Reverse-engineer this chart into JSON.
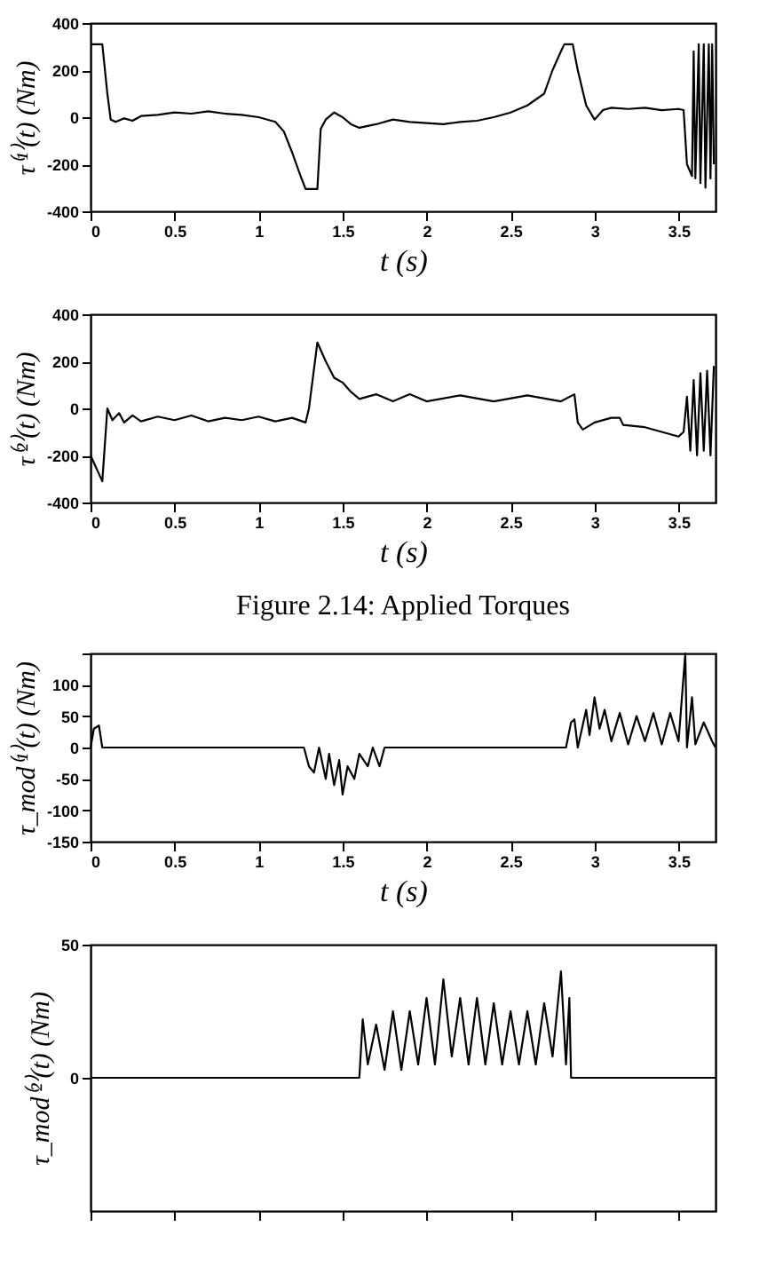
{
  "chart_data": [
    {
      "type": "line",
      "xlabel": "t (s)",
      "ylabel": "τ⁽¹⁾(t) (Nm)",
      "xlim": [
        0,
        3.72
      ],
      "xticks": [
        0,
        0.5,
        1,
        1.5,
        2,
        2.5,
        3,
        3.5
      ],
      "ylim": [
        -400,
        400
      ],
      "yticks": [
        -400,
        -200,
        0,
        200,
        400
      ],
      "series": [
        {
          "color": "#000000",
          "x": [
            0,
            0.07,
            0.1,
            0.12,
            0.15,
            0.2,
            0.25,
            0.3,
            0.4,
            0.5,
            0.6,
            0.7,
            0.8,
            0.9,
            1.0,
            1.1,
            1.15,
            1.2,
            1.25,
            1.28,
            1.35,
            1.37,
            1.4,
            1.45,
            1.5,
            1.55,
            1.6,
            1.7,
            1.8,
            1.9,
            2.0,
            2.1,
            2.2,
            2.3,
            2.4,
            2.5,
            2.6,
            2.7,
            2.75,
            2.8,
            2.82,
            2.87,
            2.9,
            2.95,
            3.0,
            3.05,
            3.1,
            3.2,
            3.3,
            3.4,
            3.5,
            3.53,
            3.55,
            3.58,
            3.59,
            3.6,
            3.62,
            3.63,
            3.65,
            3.66,
            3.68,
            3.69,
            3.7,
            3.71
          ],
          "values": [
            310,
            310,
            100,
            -10,
            -20,
            -5,
            -15,
            5,
            10,
            20,
            15,
            25,
            15,
            10,
            0,
            -20,
            -60,
            -150,
            -250,
            -305,
            -305,
            -50,
            -10,
            20,
            0,
            -30,
            -45,
            -30,
            -10,
            -20,
            -25,
            -30,
            -20,
            -15,
            0,
            20,
            50,
            100,
            200,
            280,
            310,
            310,
            200,
            50,
            -10,
            30,
            40,
            35,
            40,
            30,
            35,
            30,
            -200,
            -250,
            280,
            -260,
            310,
            -280,
            310,
            -300,
            310,
            -260,
            310,
            -200
          ]
        }
      ]
    },
    {
      "type": "line",
      "xlabel": "t (s)",
      "ylabel": "τ⁽²⁾(t) (Nm)",
      "xlim": [
        0,
        3.72
      ],
      "xticks": [
        0,
        0.5,
        1,
        1.5,
        2,
        2.5,
        3,
        3.5
      ],
      "ylim": [
        -400,
        400
      ],
      "yticks": [
        -400,
        -200,
        0,
        200,
        400
      ],
      "annotations": [
        "Figure 2.14:  Applied Torques"
      ],
      "series": [
        {
          "color": "#000000",
          "x": [
            0,
            0.07,
            0.1,
            0.13,
            0.17,
            0.2,
            0.25,
            0.3,
            0.4,
            0.5,
            0.6,
            0.7,
            0.8,
            0.9,
            1.0,
            1.1,
            1.2,
            1.28,
            1.3,
            1.35,
            1.4,
            1.45,
            1.5,
            1.55,
            1.6,
            1.7,
            1.8,
            1.9,
            2.0,
            2.2,
            2.4,
            2.6,
            2.8,
            2.88,
            2.9,
            2.93,
            3.0,
            3.1,
            3.15,
            3.17,
            3.3,
            3.4,
            3.5,
            3.53,
            3.55,
            3.57,
            3.59,
            3.61,
            3.63,
            3.65,
            3.67,
            3.69,
            3.71
          ],
          "values": [
            -200,
            -310,
            0,
            -50,
            -20,
            -60,
            -30,
            -55,
            -35,
            -50,
            -30,
            -55,
            -40,
            -50,
            -35,
            -55,
            -40,
            -60,
            0,
            280,
            200,
            130,
            110,
            70,
            40,
            60,
            30,
            60,
            30,
            55,
            30,
            55,
            30,
            60,
            -60,
            -90,
            -60,
            -40,
            -40,
            -70,
            -80,
            -100,
            -120,
            -100,
            50,
            -180,
            120,
            -200,
            150,
            -180,
            160,
            -200,
            180
          ]
        }
      ]
    },
    {
      "type": "line",
      "xlabel": "t (s)",
      "ylabel": "τ_mod⁽¹⁾(t) (Nm)",
      "xlim": [
        0,
        3.72
      ],
      "xticks": [
        0,
        0.5,
        1,
        1.5,
        2,
        2.5,
        3,
        3.5
      ],
      "ylim": [
        -150,
        150
      ],
      "yticks": [
        -150,
        -100,
        -50,
        0,
        50,
        100,
        {
          "value": 150,
          "label": null
        }
      ],
      "series": [
        {
          "color": "#000000",
          "x": [
            0,
            0.02,
            0.05,
            0.07,
            1.27,
            1.3,
            1.33,
            1.36,
            1.4,
            1.42,
            1.45,
            1.48,
            1.5,
            1.53,
            1.57,
            1.6,
            1.65,
            1.68,
            1.72,
            1.75,
            2.83,
            2.86,
            2.88,
            2.9,
            2.95,
            2.97,
            3.0,
            3.03,
            3.06,
            3.1,
            3.15,
            3.2,
            3.25,
            3.3,
            3.35,
            3.4,
            3.45,
            3.5,
            3.54,
            3.55,
            3.58,
            3.6,
            3.65,
            3.7,
            3.72
          ],
          "values": [
            0,
            30,
            35,
            0,
            0,
            -30,
            -40,
            0,
            -50,
            -10,
            -60,
            -20,
            -75,
            -30,
            -50,
            -10,
            -30,
            0,
            -30,
            0,
            0,
            40,
            45,
            0,
            60,
            20,
            80,
            30,
            60,
            10,
            55,
            5,
            50,
            10,
            55,
            5,
            55,
            10,
            150,
            0,
            80,
            5,
            40,
            10,
            0
          ]
        }
      ]
    },
    {
      "type": "line",
      "ylabel": "τ_mod⁽²⁾(t) (Nm)",
      "xlim": [
        0,
        3.72
      ],
      "xticks": [
        0,
        0.5,
        1,
        1.5,
        2,
        2.5,
        3,
        3.5
      ],
      "ylim": [
        -50,
        50
      ],
      "yticks": [
        0,
        50
      ],
      "tick_labels": "y",
      "series": [
        {
          "color": "#000000",
          "x": [
            0,
            1.6,
            1.62,
            1.65,
            1.7,
            1.75,
            1.8,
            1.85,
            1.9,
            1.95,
            2.0,
            2.05,
            2.1,
            2.15,
            2.2,
            2.25,
            2.3,
            2.35,
            2.4,
            2.45,
            2.5,
            2.55,
            2.6,
            2.65,
            2.7,
            2.75,
            2.8,
            2.83,
            2.85,
            2.86,
            3.72
          ],
          "values": [
            0,
            0,
            22,
            5,
            20,
            3,
            25,
            3,
            25,
            5,
            30,
            5,
            37,
            8,
            30,
            5,
            30,
            5,
            28,
            5,
            25,
            5,
            25,
            5,
            28,
            8,
            40,
            5,
            30,
            0,
            0
          ]
        }
      ]
    }
  ]
}
